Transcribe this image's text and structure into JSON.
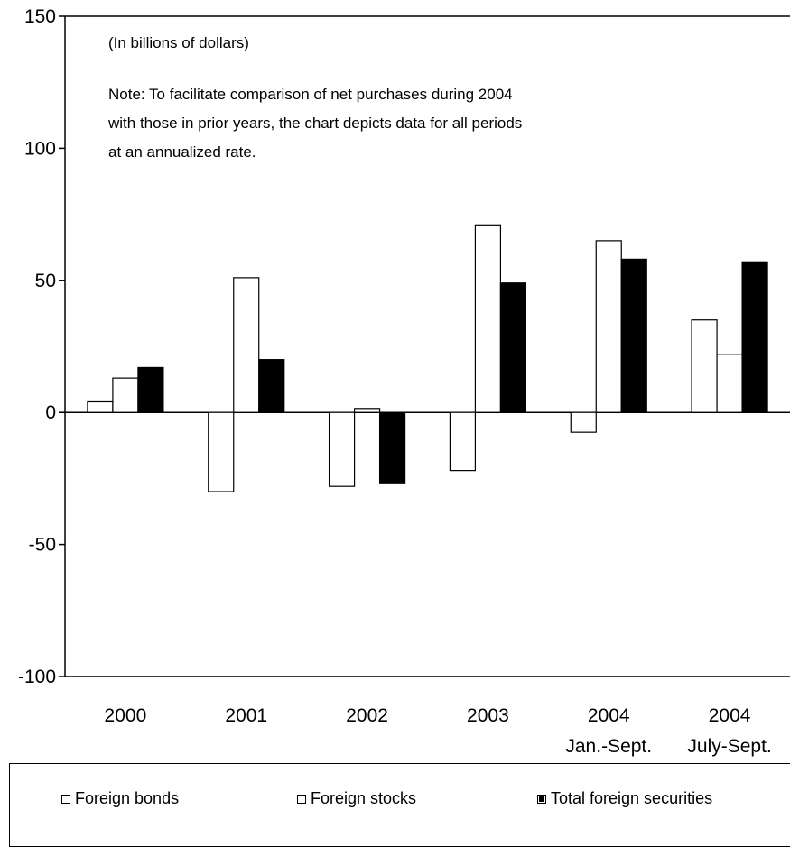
{
  "chart_data": {
    "type": "bar",
    "unit_note": "(In billions of dollars)",
    "note_lines": [
      "Note: To facilitate comparison of net purchases during 2004",
      "with those in prior years, the chart depicts data for all periods",
      "at an annualized rate."
    ],
    "categories": [
      {
        "line1": "2000",
        "line2": ""
      },
      {
        "line1": "2001",
        "line2": ""
      },
      {
        "line1": "2002",
        "line2": ""
      },
      {
        "line1": "2003",
        "line2": ""
      },
      {
        "line1": "2004",
        "line2": "Jan.-Sept."
      },
      {
        "line1": "2004",
        "line2": "July-Sept."
      }
    ],
    "series": [
      {
        "name": "Foreign bonds",
        "fill": "#ffffff",
        "values": [
          4,
          -30,
          -28,
          -22,
          -7.5,
          35
        ]
      },
      {
        "name": "Foreign stocks",
        "fill": "#ffffff",
        "values": [
          13,
          51,
          1.5,
          71,
          65,
          22
        ]
      },
      {
        "name": "Total foreign securities",
        "fill": "#000000",
        "values": [
          17,
          20,
          -27,
          49,
          58,
          57
        ]
      }
    ],
    "ylim": [
      -100,
      150
    ],
    "yticks": [
      "150",
      "100",
      "50",
      "0",
      "-50",
      "-100"
    ],
    "ytick_values": [
      150,
      100,
      50,
      0,
      -50,
      -100
    ],
    "grid": false,
    "legend_position": "bottom"
  },
  "legend": {
    "items": [
      {
        "label": "Foreign bonds",
        "style": "hollow"
      },
      {
        "label": "Foreign stocks",
        "style": "hollow"
      },
      {
        "label": "Total foreign securities",
        "style": "filled"
      }
    ]
  }
}
